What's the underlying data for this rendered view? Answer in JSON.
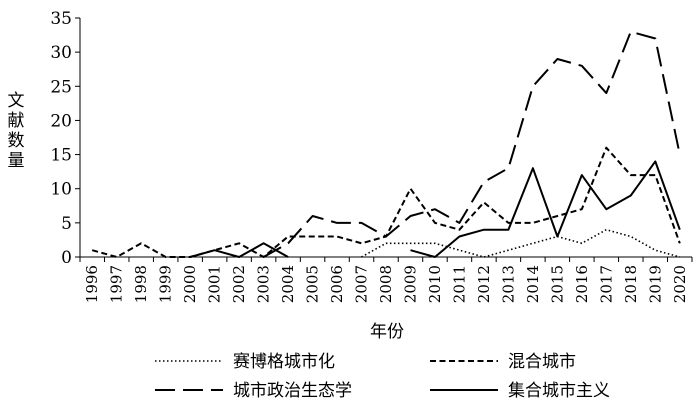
{
  "chart_data": {
    "type": "line",
    "xlabel": "年份",
    "ylabel": "文献数量",
    "ylim": [
      0,
      35
    ],
    "yticks": [
      0,
      5,
      10,
      15,
      20,
      25,
      30,
      35
    ],
    "grid": false,
    "legend_position": "bottom",
    "categories": [
      "1996",
      "1997",
      "1998",
      "1999",
      "2000",
      "2001",
      "2002",
      "2003",
      "2004",
      "2005",
      "2006",
      "2007",
      "2008",
      "2009",
      "2010",
      "2011",
      "2012",
      "2013",
      "2014",
      "2015",
      "2016",
      "2017",
      "2018",
      "2019",
      "2020"
    ],
    "series": [
      {
        "name": "赛博格城市化",
        "dash": "dotted",
        "values": [
          null,
          null,
          null,
          null,
          null,
          null,
          null,
          null,
          null,
          null,
          null,
          0,
          2,
          2,
          2,
          1,
          0,
          1,
          2,
          3,
          2,
          4,
          3,
          1,
          0
        ]
      },
      {
        "name": "混合城市",
        "dash": "short-dash",
        "values": [
          1,
          0,
          2,
          0,
          0,
          1,
          2,
          0,
          3,
          3,
          3,
          2,
          3,
          10,
          5,
          4,
          8,
          5,
          5,
          6,
          7,
          16,
          12,
          12,
          2
        ]
      },
      {
        "name": "城市政治生态学",
        "dash": "long-dash",
        "values": [
          null,
          null,
          null,
          null,
          null,
          null,
          null,
          0,
          2,
          6,
          5,
          5,
          3,
          6,
          7,
          5,
          11,
          13,
          25,
          29,
          28,
          24,
          33,
          32,
          15
        ]
      },
      {
        "name": "集合城市主义",
        "dash": "solid",
        "values": [
          null,
          null,
          null,
          null,
          0,
          1,
          0,
          2,
          0,
          null,
          null,
          null,
          null,
          1,
          0,
          3,
          4,
          4,
          13,
          3,
          12,
          7,
          9,
          14,
          4
        ]
      }
    ]
  }
}
